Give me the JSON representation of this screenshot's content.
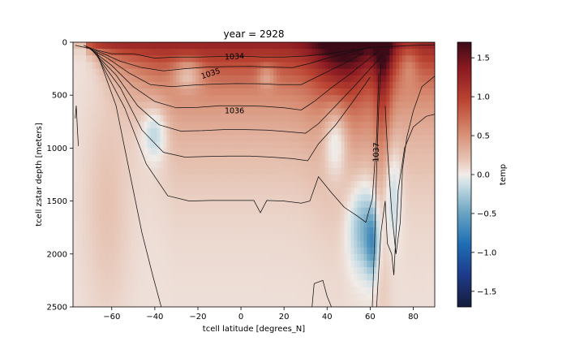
{
  "chart_data": {
    "type": "heatmap",
    "title": "year = 2928",
    "xlabel": "tcell latitude [degrees_N]",
    "ylabel": "tcell zstar depth [meters]",
    "xlim": [
      -78,
      90
    ],
    "ylim": [
      2500,
      0
    ],
    "x_ticks": [
      -60,
      -40,
      -20,
      0,
      20,
      40,
      60,
      80
    ],
    "y_ticks": [
      0,
      500,
      1000,
      1500,
      2000,
      2500
    ],
    "colorbar": {
      "label": "temp",
      "vmin": -1.7,
      "vmax": 1.7,
      "ticks": [
        -1.5,
        -1.0,
        -0.5,
        0.0,
        0.5,
        1.0,
        1.5
      ],
      "tick_labels": [
        "−1.5",
        "−1.0",
        "−0.5",
        "0.0",
        "0.5",
        "1.0",
        "1.5"
      ],
      "colormap": "balance"
    },
    "contour_labels": [
      {
        "text": "1034",
        "x": -3,
        "y": 140,
        "angle": -3
      },
      {
        "text": "1035",
        "x": -14,
        "y": 300,
        "angle": -18
      },
      {
        "text": "1036",
        "x": -3,
        "y": 650,
        "angle": 0
      },
      {
        "text": "1037",
        "x": 63,
        "y": 1040,
        "angle": -88
      }
    ],
    "contours": [
      [
        [
          -77,
          30
        ],
        [
          -70,
          60
        ],
        [
          -60,
          110
        ],
        [
          -50,
          110
        ],
        [
          -40,
          150
        ],
        [
          -30,
          140
        ],
        [
          -20,
          140
        ],
        [
          -10,
          135
        ],
        [
          0,
          130
        ],
        [
          10,
          140
        ],
        [
          20,
          140
        ],
        [
          30,
          130
        ],
        [
          40,
          110
        ],
        [
          50,
          80
        ],
        [
          60,
          50
        ],
        [
          70,
          40
        ],
        [
          80,
          30
        ],
        [
          90,
          25
        ]
      ],
      [
        [
          -73,
          30
        ],
        [
          -66,
          90
        ],
        [
          -56,
          180
        ],
        [
          -46,
          240
        ],
        [
          -36,
          270
        ],
        [
          -26,
          250
        ],
        [
          -16,
          235
        ],
        [
          -6,
          230
        ],
        [
          4,
          228
        ],
        [
          14,
          235
        ],
        [
          24,
          240
        ],
        [
          32,
          200
        ],
        [
          40,
          150
        ],
        [
          50,
          100
        ],
        [
          58,
          60
        ]
      ],
      [
        [
          -72,
          40
        ],
        [
          -62,
          150
        ],
        [
          -52,
          290
        ],
        [
          -42,
          400
        ],
        [
          -32,
          420
        ],
        [
          -22,
          405
        ],
        [
          -12,
          395
        ],
        [
          -2,
          390
        ],
        [
          8,
          392
        ],
        [
          18,
          400
        ],
        [
          28,
          400
        ],
        [
          35,
          330
        ],
        [
          42,
          260
        ],
        [
          50,
          180
        ],
        [
          57,
          100
        ]
      ],
      [
        [
          -71,
          50
        ],
        [
          -60,
          220
        ],
        [
          -50,
          420
        ],
        [
          -40,
          560
        ],
        [
          -30,
          620
        ],
        [
          -20,
          615
        ],
        [
          -10,
          600
        ],
        [
          0,
          600
        ],
        [
          10,
          605
        ],
        [
          20,
          620
        ],
        [
          28,
          640
        ],
        [
          34,
          560
        ],
        [
          42,
          430
        ],
        [
          50,
          310
        ],
        [
          58,
          180
        ],
        [
          64,
          80
        ]
      ],
      [
        [
          -70,
          60
        ],
        [
          -58,
          310
        ],
        [
          -48,
          600
        ],
        [
          -38,
          780
        ],
        [
          -28,
          840
        ],
        [
          -18,
          835
        ],
        [
          -8,
          825
        ],
        [
          2,
          825
        ],
        [
          12,
          830
        ],
        [
          22,
          845
        ],
        [
          30,
          860
        ],
        [
          36,
          770
        ],
        [
          44,
          600
        ],
        [
          52,
          430
        ],
        [
          60,
          250
        ],
        [
          66,
          120
        ]
      ],
      [
        [
          -69,
          70
        ],
        [
          -56,
          430
        ],
        [
          -46,
          830
        ],
        [
          -36,
          1040
        ],
        [
          -26,
          1085
        ],
        [
          -16,
          1080
        ],
        [
          -6,
          1075
        ],
        [
          4,
          1075
        ],
        [
          14,
          1085
        ],
        [
          24,
          1100
        ],
        [
          31,
          1120
        ],
        [
          36,
          960
        ],
        [
          44,
          780
        ],
        [
          52,
          560
        ],
        [
          60,
          330
        ]
      ],
      [
        [
          -68,
          80
        ],
        [
          -54,
          620
        ],
        [
          -44,
          1150
        ],
        [
          -34,
          1450
        ],
        [
          -24,
          1500
        ],
        [
          -14,
          1495
        ],
        [
          -4,
          1495
        ],
        [
          6,
          1495
        ],
        [
          9,
          1610
        ],
        [
          12,
          1495
        ],
        [
          20,
          1500
        ],
        [
          28,
          1520
        ],
        [
          32,
          1500
        ],
        [
          36,
          1270
        ],
        [
          42,
          1420
        ],
        [
          48,
          1560
        ],
        [
          54,
          1640
        ],
        [
          58,
          1700
        ],
        [
          61,
          1480
        ],
        [
          63,
          900
        ],
        [
          64,
          300
        ]
      ],
      [
        [
          -67,
          90
        ],
        [
          -58,
          600
        ],
        [
          -52,
          1200
        ],
        [
          -46,
          1800
        ],
        [
          -41,
          2200
        ],
        [
          -37,
          2500
        ]
      ],
      [
        [
          33,
          2500
        ],
        [
          34,
          2280
        ],
        [
          38,
          2250
        ],
        [
          40,
          2400
        ],
        [
          42,
          2500
        ]
      ],
      [
        [
          61,
          2500
        ],
        [
          62,
          1900
        ],
        [
          63,
          1200
        ],
        [
          64,
          600
        ],
        [
          65,
          200
        ]
      ],
      [
        [
          67,
          600
        ],
        [
          68,
          1000
        ],
        [
          70,
          1600
        ],
        [
          72,
          2000
        ],
        [
          74,
          1700
        ],
        [
          75,
          1200
        ],
        [
          77,
          900
        ],
        [
          80,
          650
        ],
        [
          84,
          420
        ],
        [
          90,
          320
        ]
      ],
      [
        [
          63,
          2500
        ],
        [
          65,
          1800
        ],
        [
          67,
          1500
        ],
        [
          68,
          1900
        ],
        [
          70,
          2000
        ],
        [
          71,
          2200
        ],
        [
          73,
          1400
        ],
        [
          76,
          1000
        ],
        [
          80,
          800
        ],
        [
          86,
          700
        ],
        [
          90,
          680
        ]
      ],
      [
        [
          -77,
          720
        ],
        [
          -76.5,
          600
        ],
        [
          -76,
          800
        ],
        [
          -75.5,
          980
        ]
      ]
    ]
  }
}
